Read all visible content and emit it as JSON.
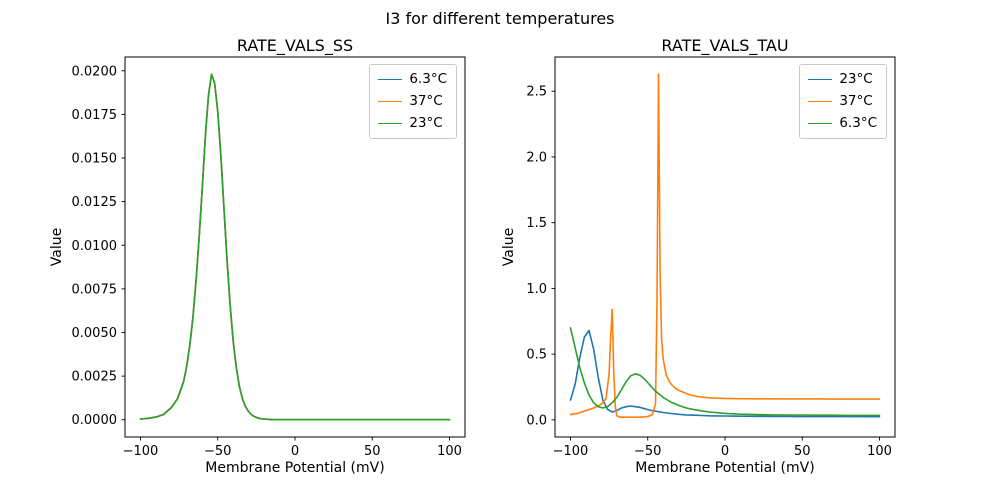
{
  "figure": {
    "title": "I3 for different temperatures",
    "background": "#ffffff",
    "axes_edge_color": "#000000"
  },
  "chart_data": [
    {
      "type": "line",
      "title": "RATE_VALS_SS",
      "xlabel": "Membrane Potential (mV)",
      "ylabel": "Value",
      "grid": false,
      "legend_position": "upper right",
      "xlim": [
        -110,
        110
      ],
      "ylim": [
        -0.00099,
        0.02079
      ],
      "xticks": [
        -100,
        -50,
        0,
        50,
        100
      ],
      "xtick_labels": [
        "−100",
        "−50",
        "0",
        "50",
        "100"
      ],
      "yticks": [
        0.0,
        0.0025,
        0.005,
        0.0075,
        0.01,
        0.0125,
        0.015,
        0.0175,
        0.02
      ],
      "ytick_labels": [
        "0.0000",
        "0.0025",
        "0.0050",
        "0.0075",
        "0.0100",
        "0.0125",
        "0.0150",
        "0.0175",
        "0.0200"
      ],
      "legend": [
        {
          "label": "6.3°C",
          "color": "#1f77b4"
        },
        {
          "label": "37°C",
          "color": "#ff7f0e"
        },
        {
          "label": "23°C",
          "color": "#2ca02c"
        }
      ],
      "series": [
        {
          "name": "6.3°C",
          "color": "#1f77b4",
          "x": [
            -100,
            -95,
            -90,
            -85,
            -80,
            -76,
            -72,
            -70,
            -68,
            -66,
            -64,
            -62,
            -60,
            -58,
            -56,
            -54,
            -52,
            -50,
            -48,
            -46,
            -44,
            -42,
            -40,
            -38,
            -36,
            -34,
            -32,
            -30,
            -28,
            -26,
            -24,
            -22,
            -20,
            -15,
            -10,
            -5,
            0,
            10,
            20,
            30,
            40,
            50,
            60,
            70,
            80,
            90,
            100
          ],
          "y": [
            4e-05,
            8e-05,
            0.00015,
            0.0003,
            0.0007,
            0.0012,
            0.0022,
            0.0031,
            0.0043,
            0.0059,
            0.008,
            0.0105,
            0.0133,
            0.0163,
            0.0186,
            0.0198,
            0.0193,
            0.0177,
            0.0152,
            0.0122,
            0.0092,
            0.0066,
            0.0045,
            0.003,
            0.0019,
            0.0012,
            0.00075,
            0.00046,
            0.00028,
            0.00017,
            0.0001,
            6e-05,
            4e-05,
            1e-05,
            0,
            0,
            0,
            0,
            0,
            0,
            0,
            0,
            0,
            0,
            0,
            0,
            0
          ]
        },
        {
          "name": "37°C",
          "color": "#ff7f0e",
          "x": [
            -100,
            -95,
            -90,
            -85,
            -80,
            -76,
            -72,
            -70,
            -68,
            -66,
            -64,
            -62,
            -60,
            -58,
            -56,
            -54,
            -52,
            -50,
            -48,
            -46,
            -44,
            -42,
            -40,
            -38,
            -36,
            -34,
            -32,
            -30,
            -28,
            -26,
            -24,
            -22,
            -20,
            -15,
            -10,
            -5,
            0,
            10,
            20,
            30,
            40,
            50,
            60,
            70,
            80,
            90,
            100
          ],
          "y": [
            4e-05,
            8e-05,
            0.00015,
            0.0003,
            0.0007,
            0.0012,
            0.0022,
            0.0031,
            0.0043,
            0.0059,
            0.008,
            0.0105,
            0.0133,
            0.0163,
            0.0186,
            0.0198,
            0.0193,
            0.0177,
            0.0152,
            0.0122,
            0.0092,
            0.0066,
            0.0045,
            0.003,
            0.0019,
            0.0012,
            0.00075,
            0.00046,
            0.00028,
            0.00017,
            0.0001,
            6e-05,
            4e-05,
            1e-05,
            0,
            0,
            0,
            0,
            0,
            0,
            0,
            0,
            0,
            0,
            0,
            0,
            0
          ]
        },
        {
          "name": "23°C",
          "color": "#2ca02c",
          "x": [
            -100,
            -95,
            -90,
            -85,
            -80,
            -76,
            -72,
            -70,
            -68,
            -66,
            -64,
            -62,
            -60,
            -58,
            -56,
            -54,
            -52,
            -50,
            -48,
            -46,
            -44,
            -42,
            -40,
            -38,
            -36,
            -34,
            -32,
            -30,
            -28,
            -26,
            -24,
            -22,
            -20,
            -15,
            -10,
            -5,
            0,
            10,
            20,
            30,
            40,
            50,
            60,
            70,
            80,
            90,
            100
          ],
          "y": [
            4e-05,
            8e-05,
            0.00015,
            0.0003,
            0.0007,
            0.0012,
            0.0022,
            0.0031,
            0.0043,
            0.0059,
            0.008,
            0.0105,
            0.0133,
            0.0163,
            0.0186,
            0.0198,
            0.0193,
            0.0177,
            0.0152,
            0.0122,
            0.0092,
            0.0066,
            0.0045,
            0.003,
            0.0019,
            0.0012,
            0.00075,
            0.00046,
            0.00028,
            0.00017,
            0.0001,
            6e-05,
            4e-05,
            1e-05,
            0,
            0,
            0,
            0,
            0,
            0,
            0,
            0,
            0,
            0,
            0,
            0,
            0
          ]
        }
      ]
    },
    {
      "type": "line",
      "title": "RATE_VALS_TAU",
      "xlabel": "Membrane Potential (mV)",
      "ylabel": "Value",
      "grid": false,
      "legend_position": "upper right",
      "xlim": [
        -110,
        110
      ],
      "ylim": [
        -0.1305,
        2.7605
      ],
      "xticks": [
        -100,
        -50,
        0,
        50,
        100
      ],
      "xtick_labels": [
        "−100",
        "−50",
        "0",
        "50",
        "100"
      ],
      "yticks": [
        0.0,
        0.5,
        1.0,
        1.5,
        2.0,
        2.5
      ],
      "ytick_labels": [
        "0.0",
        "0.5",
        "1.0",
        "1.5",
        "2.0",
        "2.5"
      ],
      "legend": [
        {
          "label": "23°C",
          "color": "#1f77b4"
        },
        {
          "label": "37°C",
          "color": "#ff7f0e"
        },
        {
          "label": "6.3°C",
          "color": "#2ca02c"
        }
      ],
      "series": [
        {
          "name": "23°C",
          "color": "#1f77b4",
          "x": [
            -100,
            -97,
            -94,
            -91,
            -88,
            -85,
            -82,
            -79,
            -76,
            -73,
            -70,
            -67,
            -64,
            -61,
            -58,
            -55,
            -52,
            -49,
            -46,
            -43,
            -40,
            -35,
            -30,
            -25,
            -20,
            -15,
            -10,
            -5,
            0,
            10,
            20,
            30,
            40,
            50,
            60,
            70,
            80,
            90,
            100
          ],
          "y": [
            0.15,
            0.27,
            0.47,
            0.63,
            0.68,
            0.54,
            0.32,
            0.15,
            0.08,
            0.06,
            0.07,
            0.09,
            0.1,
            0.105,
            0.1,
            0.095,
            0.085,
            0.075,
            0.068,
            0.062,
            0.056,
            0.048,
            0.042,
            0.038,
            0.035,
            0.033,
            0.031,
            0.03,
            0.029,
            0.028,
            0.027,
            0.026,
            0.026,
            0.025,
            0.025,
            0.025,
            0.025,
            0.024,
            0.024
          ]
        },
        {
          "name": "37°C",
          "color": "#ff7f0e",
          "x": [
            -100,
            -95,
            -90,
            -85,
            -80,
            -77,
            -75,
            -74,
            -73,
            -72,
            -71,
            -70,
            -68,
            -65,
            -60,
            -55,
            -50,
            -47,
            -45,
            -44,
            -43,
            -42,
            -41,
            -40,
            -38,
            -36,
            -34,
            -32,
            -30,
            -27,
            -24,
            -21,
            -18,
            -15,
            -10,
            -5,
            0,
            10,
            20,
            30,
            40,
            50,
            60,
            70,
            80,
            90,
            100
          ],
          "y": [
            0.04,
            0.05,
            0.07,
            0.09,
            0.12,
            0.16,
            0.35,
            0.62,
            0.84,
            0.38,
            0.1,
            0.03,
            0.02,
            0.02,
            0.02,
            0.02,
            0.025,
            0.04,
            0.12,
            0.9,
            2.63,
            1.1,
            0.62,
            0.46,
            0.34,
            0.29,
            0.26,
            0.24,
            0.225,
            0.21,
            0.195,
            0.185,
            0.178,
            0.173,
            0.168,
            0.165,
            0.163,
            0.161,
            0.16,
            0.16,
            0.159,
            0.159,
            0.159,
            0.158,
            0.158,
            0.158,
            0.158
          ]
        },
        {
          "name": "6.3°C",
          "color": "#2ca02c",
          "x": [
            -100,
            -97,
            -94,
            -91,
            -88,
            -85,
            -82,
            -79,
            -76,
            -73,
            -70,
            -67,
            -64,
            -61,
            -58,
            -55,
            -52,
            -49,
            -46,
            -43,
            -40,
            -35,
            -30,
            -25,
            -20,
            -15,
            -10,
            -5,
            0,
            10,
            20,
            30,
            40,
            50,
            60,
            70,
            80,
            90,
            100
          ],
          "y": [
            0.7,
            0.55,
            0.4,
            0.28,
            0.19,
            0.13,
            0.1,
            0.09,
            0.1,
            0.13,
            0.17,
            0.23,
            0.29,
            0.335,
            0.35,
            0.34,
            0.31,
            0.27,
            0.23,
            0.2,
            0.17,
            0.135,
            0.11,
            0.09,
            0.078,
            0.068,
            0.06,
            0.054,
            0.049,
            0.043,
            0.04,
            0.038,
            0.037,
            0.036,
            0.035,
            0.035,
            0.034,
            0.034,
            0.034
          ]
        }
      ]
    }
  ]
}
